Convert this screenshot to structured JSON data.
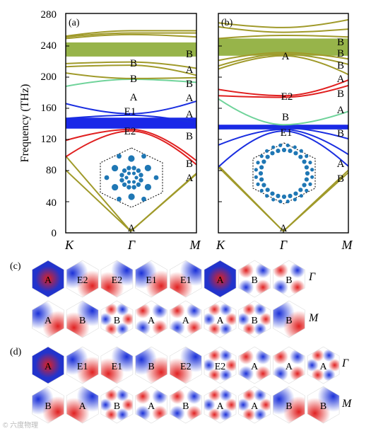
{
  "colors": {
    "olive": "#a09a2a",
    "red": "#e02020",
    "blue": "#1a2ee0",
    "mint": "#6fd39a",
    "gap_blue": "#1a28e8",
    "gap_olive": "#97b44a",
    "dots": "#1f77b4"
  },
  "panels": {
    "a": {
      "label": "(a)"
    },
    "b": {
      "label": "(b)"
    }
  },
  "axes": {
    "ylabel": "Frequency (THz)",
    "yticks": [
      "0",
      "40",
      "80",
      "120",
      "160",
      "200",
      "240",
      "280"
    ],
    "kpoints": [
      "K",
      "Γ",
      "M"
    ]
  },
  "chart_data": [
    {
      "type": "line",
      "panel": "(a)",
      "ylabel": "Frequency (THz)",
      "ylim": [
        0,
        280
      ],
      "x_ticks": [
        "K",
        "Γ",
        "M"
      ],
      "gaps": [
        {
          "color": "blue",
          "range": [
            133,
            147
          ]
        },
        {
          "color": "olive-green",
          "range": [
            225,
            243
          ]
        }
      ],
      "series": [
        {
          "color": "olive",
          "values": [
            80,
            2,
            75
          ]
        },
        {
          "color": "olive",
          "values": [
            98,
            2,
            76
          ]
        },
        {
          "color": "red",
          "values": [
            97,
            130,
            87
          ]
        },
        {
          "color": "red",
          "values": [
            118,
            132,
            92
          ]
        },
        {
          "color": "blue",
          "values": [
            146,
            150,
            140
          ]
        },
        {
          "color": "blue",
          "values": [
            165,
            152,
            168
          ]
        },
        {
          "color": "mint",
          "values": [
            187,
            196,
            192
          ]
        },
        {
          "color": "olive",
          "values": [
            204,
            197,
            198
          ]
        },
        {
          "color": "olive",
          "values": [
            212,
            214,
            201
          ]
        },
        {
          "color": "olive",
          "values": [
            216,
            218,
            210
          ]
        },
        {
          "color": "olive",
          "values": [
            248,
            253,
            250
          ]
        },
        {
          "color": "olive",
          "values": [
            250,
            255,
            255
          ]
        },
        {
          "color": "olive",
          "values": [
            251,
            258,
            258
          ]
        }
      ],
      "labels": {
        "Gamma": [
          "A",
          "E2",
          "E1",
          "A",
          "B",
          "B"
        ],
        "M": [
          "A",
          "B",
          "B",
          "A",
          "A",
          "B",
          "A",
          "B"
        ]
      }
    },
    {
      "type": "line",
      "panel": "(b)",
      "ylabel": "Frequency (THz)",
      "ylim": [
        0,
        280
      ],
      "x_ticks": [
        "K",
        "Γ",
        "M"
      ],
      "gaps": [
        {
          "color": "blue",
          "range": [
            132,
            138
          ]
        },
        {
          "color": "olive-green",
          "range": [
            226,
            248
          ]
        }
      ],
      "series": [
        {
          "color": "olive",
          "values": [
            84,
            2,
            77
          ]
        },
        {
          "color": "olive",
          "values": [
            86,
            2,
            80
          ]
        },
        {
          "color": "blue",
          "values": [
            84,
            130,
            85
          ]
        },
        {
          "color": "blue",
          "values": [
            112,
            132,
            100
          ]
        },
        {
          "color": "blue",
          "values": [
            133,
            134,
            120
          ]
        },
        {
          "color": "blue",
          "values": [
            133,
            136,
            133
          ]
        },
        {
          "color": "mint",
          "values": [
            171,
            138,
            155
          ]
        },
        {
          "color": "red",
          "values": [
            175,
            173,
            188
          ]
        },
        {
          "color": "red",
          "values": [
            183,
            175,
            195
          ]
        },
        {
          "color": "olive",
          "values": [
            209,
            226,
            202
          ]
        },
        {
          "color": "olive",
          "values": [
            213,
            228,
            215
          ]
        },
        {
          "color": "olive",
          "values": [
            220,
            230,
            222
          ]
        },
        {
          "color": "olive",
          "values": [
            248,
            252,
            250
          ]
        },
        {
          "color": "olive",
          "values": [
            263,
            256,
            260
          ]
        },
        {
          "color": "olive",
          "values": [
            268,
            262,
            272
          ]
        }
      ],
      "labels": {
        "Gamma": [
          "A",
          "E1",
          "B",
          "E2",
          "A"
        ],
        "M": [
          "B",
          "A",
          "B",
          "A",
          "B",
          "A",
          "B",
          "B",
          "B"
        ]
      }
    }
  ],
  "maps_c": {
    "label": "(c)",
    "row1": {
      "point": "Γ",
      "cells": [
        "A",
        "E2",
        "E2",
        "E1",
        "E1",
        "A",
        "B",
        "B"
      ]
    },
    "row2": {
      "point": "M",
      "cells": [
        "A",
        "B",
        "B",
        "A",
        "A",
        "A",
        "B",
        "B"
      ]
    }
  },
  "maps_d": {
    "label": "(d)",
    "row1": {
      "point": "Γ",
      "cells": [
        "A",
        "E1",
        "E1",
        "B",
        "E2",
        "E2",
        "A",
        "A",
        "A"
      ]
    },
    "row2": {
      "point": "M",
      "cells": [
        "B",
        "A",
        "B",
        "A",
        "B",
        "A",
        "A",
        "B",
        "B"
      ]
    }
  },
  "watermark": "© 六度物理"
}
